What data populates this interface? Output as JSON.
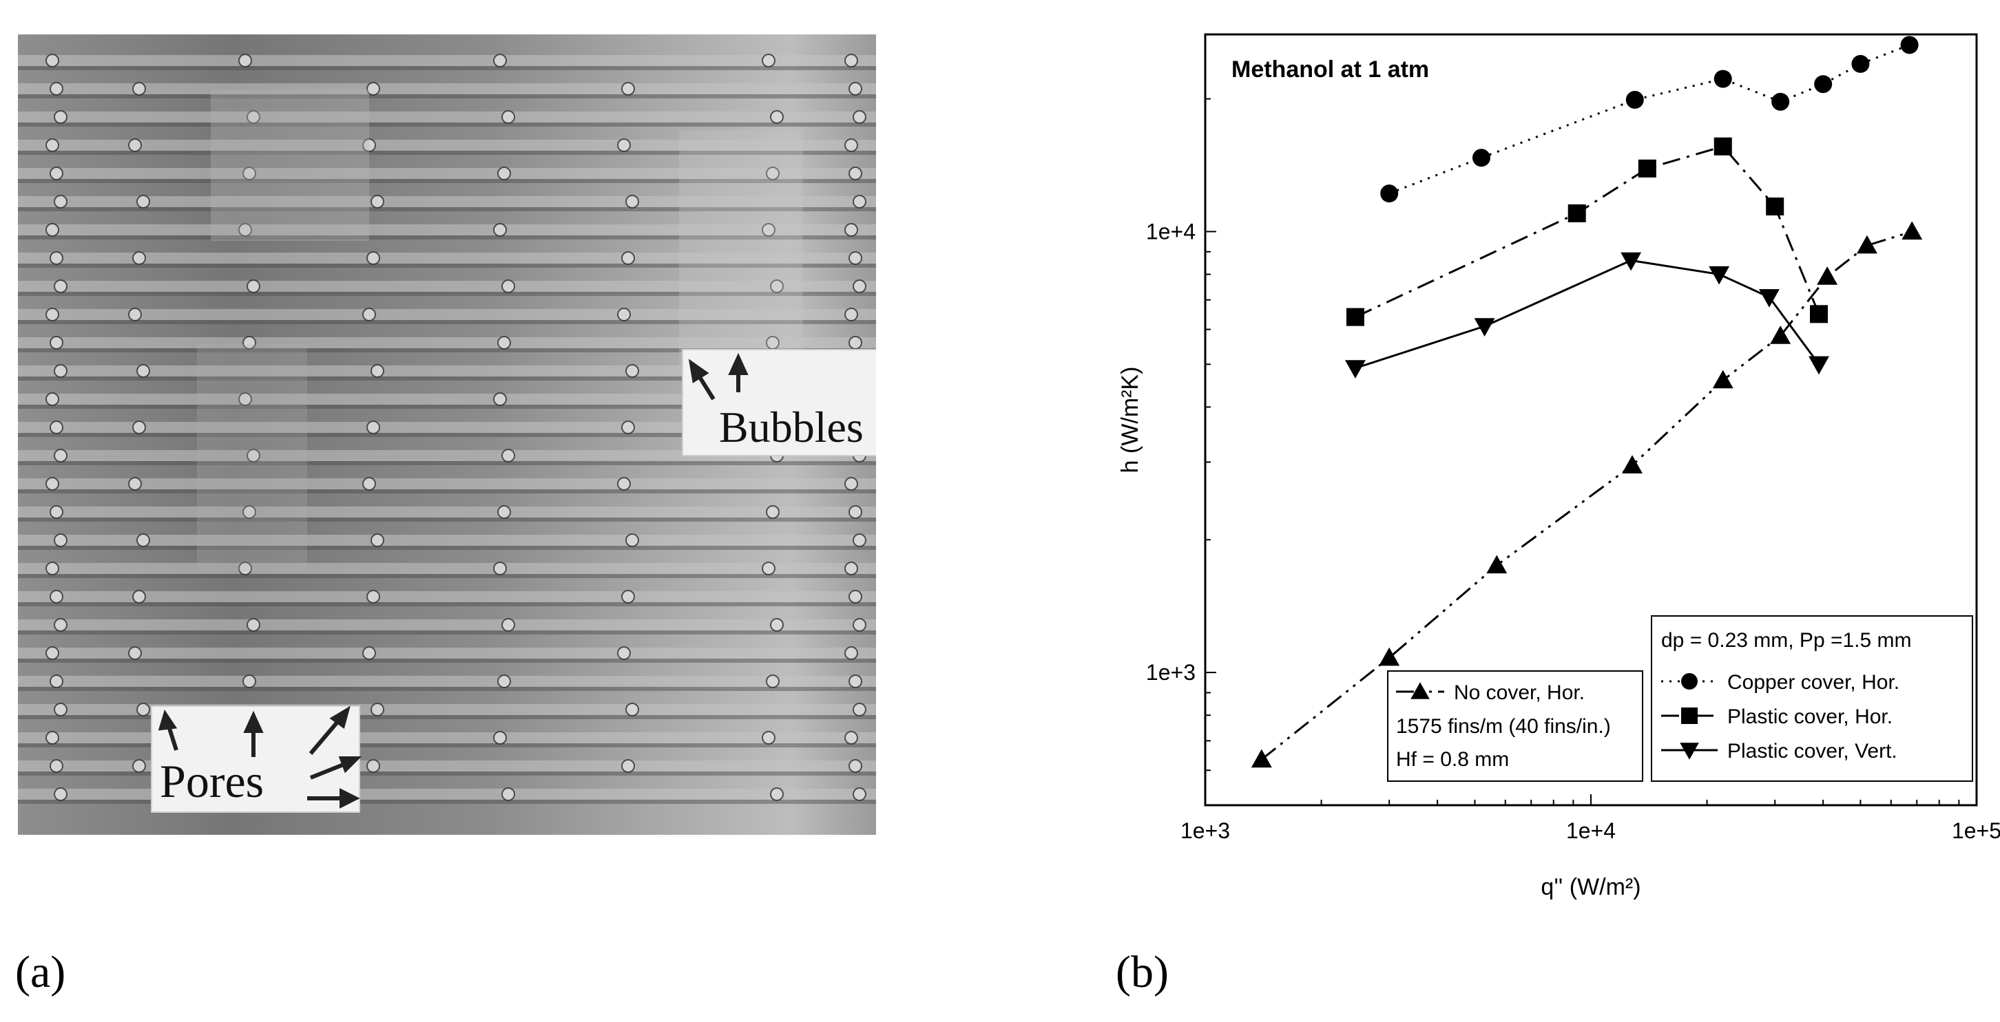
{
  "panels": {
    "a": "(a)",
    "b": "(b)"
  },
  "photo": {
    "labels": {
      "bubbles": "Bubbles",
      "pores": "Pores"
    }
  },
  "chart_data": {
    "type": "scatter",
    "title": "Methanol at 1 atm",
    "xlabel": "q'' (W/m²)",
    "ylabel": "h (W/m²K)",
    "xscale": "log",
    "yscale": "log",
    "xlim": [
      1000,
      100000
    ],
    "ylim": [
      500,
      28000
    ],
    "x_ticks": [
      "1e+3",
      "1e+4",
      "1e+5"
    ],
    "y_ticks": [
      "1e+3",
      "1e+4"
    ],
    "legend1": {
      "position": "bottom-center",
      "entries": [
        "No cover, Hor.",
        "1575 fins/m (40 fins/in.)",
        "Hf = 0.8 mm"
      ]
    },
    "legend2": {
      "position": "bottom-right",
      "header": "dp = 0.23 mm, Pp =1.5 mm",
      "entries": [
        "Copper cover, Hor.",
        "Plastic cover, Hor.",
        "Plastic cover, Vert."
      ]
    },
    "series": [
      {
        "name": "Copper cover, Hor.",
        "marker": "circle",
        "line": "dotted",
        "x": [
          3000,
          5200,
          13000,
          22000,
          31000,
          40000,
          50000,
          67000
        ],
        "y": [
          12200,
          14700,
          19900,
          22200,
          19700,
          21600,
          24000,
          26500
        ]
      },
      {
        "name": "Plastic cover, Hor.",
        "marker": "square",
        "line": "dash-dot",
        "x": [
          2450,
          9200,
          14000,
          22000,
          30000,
          39000
        ],
        "y": [
          6400,
          11000,
          13900,
          15600,
          11400,
          6500
        ]
      },
      {
        "name": "Plastic cover, Vert.",
        "marker": "triangle-down",
        "line": "solid",
        "x": [
          2450,
          5300,
          12700,
          21500,
          29000,
          39000
        ],
        "y": [
          4900,
          6100,
          8600,
          8000,
          7100,
          5000
        ]
      },
      {
        "name": "No cover, Hor.",
        "marker": "triangle-up",
        "line": "dash-dot-dot",
        "x": [
          1400,
          3000,
          5700,
          12800,
          22000,
          31000,
          41000,
          52000,
          68000
        ],
        "y": [
          635,
          1080,
          1750,
          2950,
          4600,
          5800,
          7900,
          9300,
          10000
        ]
      }
    ]
  }
}
